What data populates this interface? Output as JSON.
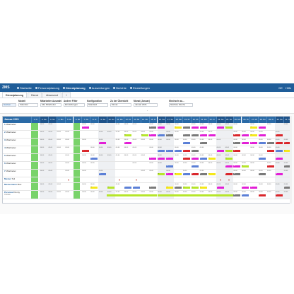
{
  "nav": {
    "brand": "ZMS",
    "items": [
      {
        "label": "Startseite",
        "active": false
      },
      {
        "label": "Personalplanung",
        "active": false
      },
      {
        "label": "Dienstplanung",
        "active": true
      },
      {
        "label": "Auswertungen",
        "active": false
      },
      {
        "label": "Berichte",
        "active": false
      },
      {
        "label": "Einstellungen",
        "active": false
      }
    ],
    "right": [
      "DE",
      "Hilfe"
    ]
  },
  "tabs": [
    {
      "label": "Dienstplanung",
      "active": true
    },
    {
      "label": "Dienst",
      "active": false
    },
    {
      "label": "Abwesend",
      "active": false
    },
    {
      "label": "+",
      "active": false
    }
  ],
  "filters": [
    {
      "label": "Modell",
      "value": "Kalender"
    },
    {
      "label": "Mitarbeiter Auswahl",
      "value": "Alle Mitarbeiter"
    },
    {
      "label": "Andere Filter",
      "value": "Einstellungen"
    },
    {
      "label": "Konfiguration",
      "value": "Standard"
    },
    {
      "label": "Zu der Übersicht",
      "value": "Monat"
    },
    {
      "label": "Monat (Januar)",
      "value": "Januar 2021"
    },
    {
      "label": "Wechseln zu...",
      "value": "Nächste Woche"
    }
  ],
  "search_label": "Suchen",
  "planner": {
    "month_title": "Januar 2021",
    "days": [
      "1. Fr",
      "2. Sa",
      "3. So",
      "4. Mo",
      "5. Di",
      "6. Mi",
      "7. Do",
      "8. Fr",
      "9. Sa",
      "10. So",
      "11. Mo",
      "12. Di",
      "13. Mi",
      "14. Do",
      "15. Fr",
      "16. Sa",
      "17. So",
      "18. Mo",
      "19. Di",
      "20. Mi",
      "21. Do",
      "22. Fr",
      "23. Sa",
      "24. So",
      "25. Mo",
      "26. Di",
      "27. Mi",
      "28. Do",
      "29. Fr",
      "30. Sa",
      "31. So"
    ],
    "rows": [
      {
        "title": "1",
        "label": "Mitarbeiter",
        "sub": ""
      },
      {
        "title": "2",
        "label": "Mitarbeiter",
        "sub": ""
      },
      {
        "title": "3",
        "label": "Mitarbeiter",
        "sub": ""
      },
      {
        "title": "4",
        "label": "Mitarbeiter",
        "sub": ""
      },
      {
        "title": "5",
        "label": "Mitarbeiter",
        "sub": ""
      },
      {
        "title": "6",
        "label": "Mitarbeiter",
        "sub": ""
      },
      {
        "title": "7",
        "label": "Mitarbeiter",
        "sub": ""
      },
      {
        "title": "Muster",
        "label": "Teil",
        "sub": ""
      },
      {
        "title": "Mustermann",
        "label": "Max",
        "sub": ""
      },
      {
        "title": "Personal",
        "label": "Penny",
        "sub": "Christin"
      }
    ],
    "time_sample": "00:00",
    "chip_letters": [
      "F",
      "S",
      "N",
      "U",
      "K"
    ]
  },
  "colors": {
    "header": "#2a6aa6",
    "holiday_green": "#79d36a",
    "magenta": "#e21fd6",
    "lime": "#b6e62b",
    "blue": "#5b7fd6",
    "yellow": "#f5e81b",
    "red": "#d9262b",
    "grey": "#7a7a7a"
  }
}
